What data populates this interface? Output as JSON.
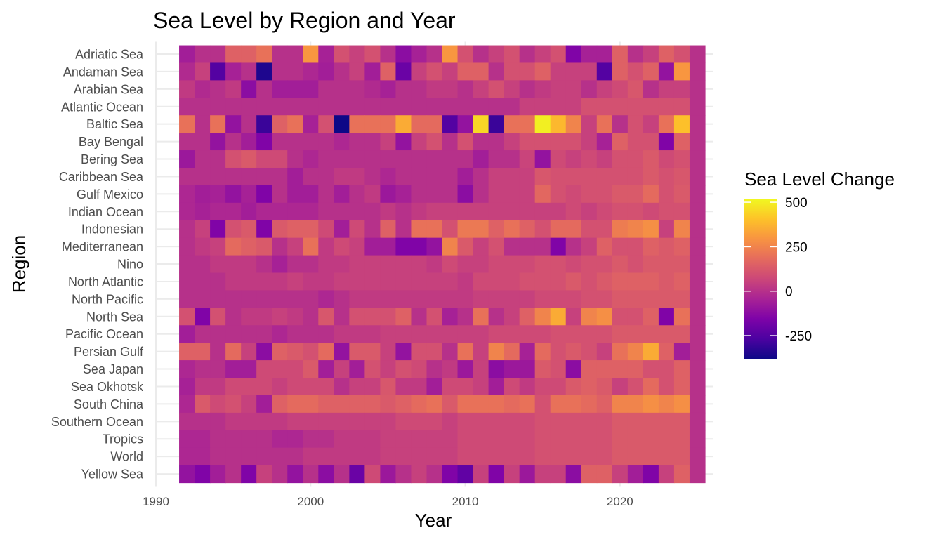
{
  "chart_data": {
    "type": "heatmap",
    "title": "Sea Level by Region and Year",
    "xlabel": "Year",
    "ylabel": "Region",
    "xlim": [
      1990,
      2026
    ],
    "x_ticks": [
      1990,
      2000,
      2010,
      2020
    ],
    "years": [
      1992,
      1993,
      1994,
      1995,
      1996,
      1997,
      1998,
      1999,
      2000,
      2001,
      2002,
      2003,
      2004,
      2005,
      2006,
      2007,
      2008,
      2009,
      2010,
      2011,
      2012,
      2013,
      2014,
      2015,
      2016,
      2017,
      2018,
      2019,
      2020,
      2021,
      2022,
      2023,
      2024,
      2025
    ],
    "regions": [
      "Adriatic Sea",
      "Andaman Sea",
      "Arabian Sea",
      "Atlantic Ocean",
      "Baltic Sea",
      "Bay Bengal",
      "Bering Sea",
      "Caribbean Sea",
      "Gulf Mexico",
      "Indian Ocean",
      "Indonesian",
      "Mediterranean",
      "Nino",
      "North Atlantic",
      "North Pacific",
      "North Sea",
      "Pacific Ocean",
      "Persian Gulf",
      "Sea Japan",
      "Sea Okhotsk",
      "South China",
      "Southern Ocean",
      "Tropics",
      "World",
      "Yellow Sea"
    ],
    "values": [
      [
        -60,
        0,
        0,
        150,
        150,
        200,
        0,
        0,
        300,
        -50,
        100,
        50,
        100,
        0,
        -120,
        -50,
        0,
        300,
        100,
        0,
        50,
        100,
        0,
        50,
        100,
        -150,
        -50,
        -50,
        150,
        0,
        50,
        150,
        100,
        0
      ],
      [
        -20,
        50,
        -250,
        -50,
        0,
        -350,
        0,
        0,
        -30,
        -60,
        0,
        50,
        -60,
        150,
        -200,
        50,
        100,
        50,
        150,
        150,
        0,
        100,
        100,
        150,
        50,
        50,
        50,
        -250,
        150,
        100,
        150,
        -100,
        300,
        0
      ],
      [
        30,
        -20,
        0,
        30,
        -120,
        0,
        -60,
        -60,
        -60,
        0,
        0,
        0,
        -20,
        -50,
        0,
        0,
        30,
        30,
        0,
        50,
        100,
        50,
        0,
        30,
        50,
        50,
        0,
        50,
        80,
        120,
        0,
        50,
        50,
        0
      ],
      [
        0,
        0,
        0,
        0,
        0,
        0,
        0,
        0,
        0,
        0,
        0,
        0,
        0,
        0,
        0,
        0,
        0,
        0,
        0,
        0,
        0,
        0,
        50,
        50,
        50,
        50,
        100,
        100,
        100,
        100,
        100,
        100,
        100,
        0
      ],
      [
        200,
        0,
        200,
        -100,
        0,
        -300,
        150,
        200,
        -50,
        100,
        -400,
        200,
        200,
        200,
        350,
        180,
        180,
        -250,
        -100,
        450,
        -300,
        200,
        200,
        500,
        380,
        250,
        50,
        200,
        0,
        100,
        50,
        200,
        400,
        0
      ],
      [
        0,
        0,
        -100,
        0,
        -60,
        -150,
        0,
        0,
        0,
        0,
        -30,
        0,
        0,
        50,
        -100,
        50,
        100,
        0,
        100,
        0,
        0,
        50,
        100,
        100,
        100,
        100,
        50,
        -50,
        150,
        100,
        100,
        -150,
        150,
        0
      ],
      [
        -80,
        0,
        0,
        100,
        130,
        80,
        80,
        0,
        -30,
        0,
        0,
        0,
        0,
        0,
        0,
        0,
        0,
        0,
        0,
        -60,
        0,
        0,
        60,
        -100,
        80,
        50,
        80,
        50,
        100,
        100,
        130,
        80,
        100,
        0
      ],
      [
        0,
        0,
        0,
        0,
        0,
        0,
        0,
        -60,
        0,
        0,
        30,
        30,
        0,
        -30,
        0,
        0,
        0,
        0,
        -60,
        0,
        50,
        50,
        50,
        120,
        100,
        100,
        100,
        100,
        100,
        100,
        130,
        100,
        120,
        0
      ],
      [
        -30,
        -60,
        -50,
        -100,
        -50,
        -150,
        0,
        -60,
        -60,
        0,
        -60,
        0,
        30,
        -80,
        -50,
        0,
        0,
        0,
        -120,
        0,
        50,
        50,
        50,
        170,
        100,
        80,
        100,
        100,
        130,
        130,
        180,
        100,
        130,
        0
      ],
      [
        -30,
        -50,
        -30,
        -30,
        -60,
        -30,
        -30,
        -30,
        -30,
        0,
        0,
        0,
        0,
        30,
        0,
        30,
        50,
        50,
        50,
        50,
        50,
        50,
        50,
        50,
        50,
        80,
        50,
        80,
        100,
        100,
        80,
        100,
        100,
        0
      ],
      [
        0,
        50,
        -150,
        100,
        130,
        -150,
        130,
        150,
        150,
        80,
        -60,
        80,
        0,
        150,
        0,
        200,
        200,
        100,
        220,
        220,
        150,
        200,
        150,
        100,
        180,
        180,
        100,
        100,
        230,
        250,
        280,
        50,
        250,
        0
      ],
      [
        0,
        30,
        50,
        180,
        150,
        130,
        0,
        50,
        200,
        30,
        80,
        50,
        -60,
        -60,
        -150,
        -150,
        -100,
        250,
        130,
        50,
        100,
        0,
        0,
        0,
        -150,
        0,
        50,
        150,
        100,
        100,
        150,
        130,
        150,
        0
      ],
      [
        0,
        0,
        30,
        30,
        30,
        0,
        -50,
        0,
        0,
        30,
        30,
        50,
        50,
        50,
        50,
        50,
        30,
        80,
        50,
        50,
        80,
        80,
        80,
        100,
        100,
        80,
        100,
        100,
        130,
        100,
        130,
        130,
        130,
        0
      ],
      [
        0,
        0,
        0,
        30,
        30,
        30,
        30,
        50,
        30,
        30,
        50,
        50,
        50,
        50,
        50,
        50,
        50,
        50,
        30,
        80,
        80,
        80,
        100,
        100,
        100,
        130,
        100,
        130,
        150,
        150,
        150,
        130,
        150,
        0
      ],
      [
        0,
        0,
        0,
        0,
        0,
        0,
        0,
        0,
        0,
        -30,
        0,
        30,
        30,
        30,
        30,
        30,
        30,
        30,
        30,
        50,
        50,
        50,
        50,
        80,
        80,
        80,
        100,
        100,
        130,
        130,
        130,
        130,
        130,
        0
      ],
      [
        100,
        -150,
        100,
        0,
        30,
        30,
        50,
        30,
        0,
        120,
        0,
        100,
        100,
        100,
        150,
        0,
        100,
        -50,
        0,
        200,
        0,
        50,
        150,
        250,
        350,
        50,
        250,
        280,
        100,
        100,
        150,
        -150,
        200,
        0
      ],
      [
        -60,
        0,
        0,
        0,
        0,
        0,
        -30,
        0,
        0,
        0,
        30,
        30,
        30,
        50,
        50,
        50,
        50,
        50,
        50,
        50,
        80,
        80,
        80,
        80,
        100,
        100,
        100,
        100,
        130,
        130,
        130,
        130,
        130,
        0
      ],
      [
        150,
        150,
        0,
        180,
        50,
        -120,
        150,
        130,
        100,
        180,
        -100,
        130,
        130,
        50,
        -100,
        100,
        100,
        0,
        200,
        50,
        250,
        180,
        -50,
        180,
        100,
        130,
        100,
        50,
        200,
        250,
        350,
        150,
        -60,
        0
      ],
      [
        -30,
        0,
        0,
        -60,
        -60,
        80,
        80,
        80,
        130,
        -60,
        50,
        -60,
        100,
        50,
        100,
        80,
        0,
        30,
        -80,
        50,
        -120,
        -80,
        -80,
        130,
        100,
        -120,
        150,
        150,
        150,
        150,
        100,
        100,
        150,
        0
      ],
      [
        -50,
        30,
        30,
        80,
        80,
        80,
        50,
        80,
        80,
        80,
        0,
        50,
        50,
        120,
        30,
        30,
        -60,
        80,
        80,
        50,
        -60,
        80,
        30,
        80,
        80,
        130,
        150,
        130,
        50,
        100,
        180,
        100,
        150,
        0
      ],
      [
        -30,
        130,
        80,
        100,
        50,
        -60,
        150,
        180,
        180,
        150,
        150,
        150,
        150,
        130,
        150,
        180,
        200,
        130,
        200,
        200,
        200,
        180,
        200,
        100,
        200,
        200,
        180,
        150,
        250,
        250,
        280,
        250,
        280,
        0
      ],
      [
        0,
        0,
        0,
        30,
        30,
        30,
        30,
        50,
        50,
        50,
        50,
        50,
        50,
        50,
        80,
        80,
        80,
        50,
        80,
        80,
        80,
        80,
        80,
        100,
        100,
        100,
        100,
        100,
        130,
        130,
        130,
        130,
        130,
        0
      ],
      [
        -30,
        -30,
        0,
        0,
        0,
        0,
        -30,
        -30,
        0,
        0,
        30,
        30,
        30,
        50,
        50,
        50,
        50,
        50,
        80,
        80,
        80,
        80,
        80,
        100,
        100,
        100,
        100,
        100,
        130,
        130,
        130,
        130,
        130,
        0
      ],
      [
        -30,
        -30,
        0,
        0,
        0,
        0,
        0,
        0,
        30,
        30,
        30,
        30,
        30,
        50,
        50,
        50,
        50,
        50,
        80,
        80,
        80,
        80,
        80,
        100,
        100,
        100,
        100,
        100,
        130,
        130,
        130,
        130,
        130,
        0
      ],
      [
        -100,
        -150,
        -60,
        0,
        -150,
        50,
        0,
        -100,
        0,
        -120,
        0,
        -200,
        80,
        -80,
        0,
        50,
        0,
        -150,
        -220,
        50,
        -150,
        50,
        -80,
        50,
        50,
        -120,
        150,
        150,
        50,
        -60,
        -150,
        50,
        150,
        0
      ]
    ],
    "legend": {
      "title": "Sea Level Change",
      "ticks": [
        500,
        250,
        0,
        -250
      ],
      "range": [
        -380,
        520
      ],
      "colormap": "plasma"
    },
    "grid": true
  }
}
